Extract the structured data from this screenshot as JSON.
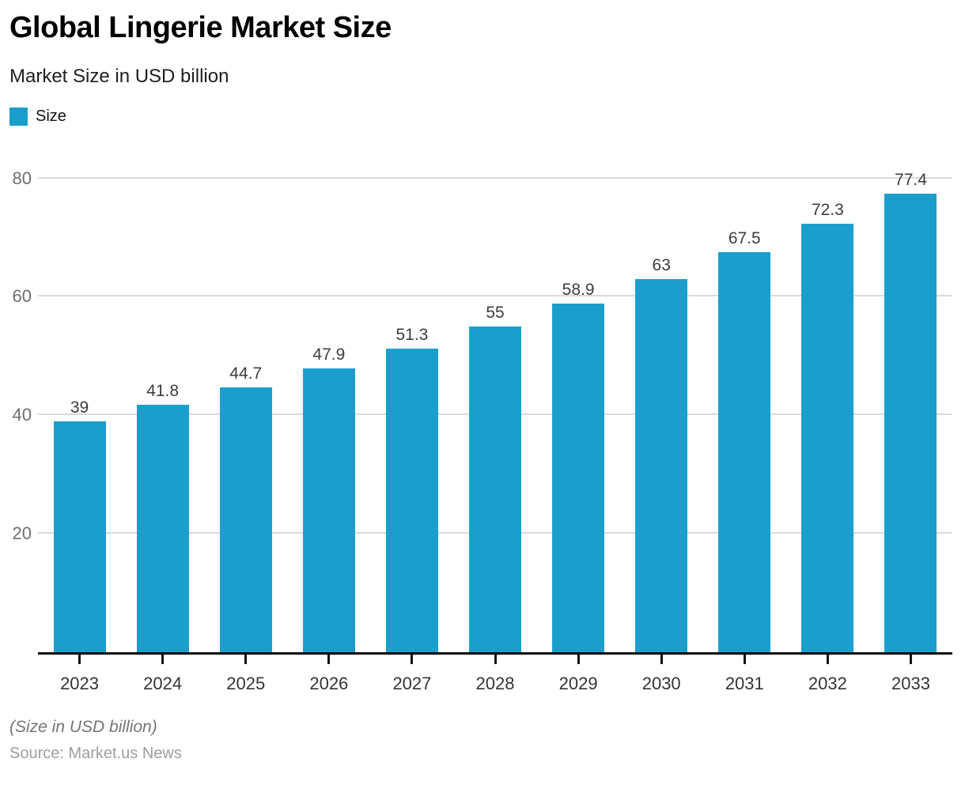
{
  "header": {
    "title": "Global Lingerie Market Size",
    "subtitle": "Market Size in USD billion"
  },
  "legend": {
    "label": "Size",
    "swatch_color": "#1A9FCD"
  },
  "chart_data": {
    "type": "bar",
    "title": "Global Lingerie Market Size",
    "subtitle": "Market Size in USD billion",
    "categories": [
      "2023",
      "2024",
      "2025",
      "2026",
      "2027",
      "2028",
      "2029",
      "2030",
      "2031",
      "2032",
      "2033"
    ],
    "series": [
      {
        "name": "Size",
        "values": [
          39,
          41.8,
          44.7,
          47.9,
          51.3,
          55,
          58.9,
          63,
          67.5,
          72.3,
          77.4
        ]
      }
    ],
    "value_labels": [
      "39",
      "41.8",
      "44.7",
      "47.9",
      "51.3",
      "55",
      "58.9",
      "63",
      "67.5",
      "72.3",
      "77.4"
    ],
    "xlabel": "",
    "ylabel": "",
    "y_ticks": [
      20,
      40,
      60,
      80
    ],
    "ylim": [
      0,
      84.4
    ],
    "grid": true,
    "legend_position": "top-left",
    "bar_color": "#1A9FCD",
    "units": "USD billion"
  },
  "footer": {
    "note": "(Size in USD billion)",
    "source": "Source: Market.us News"
  }
}
